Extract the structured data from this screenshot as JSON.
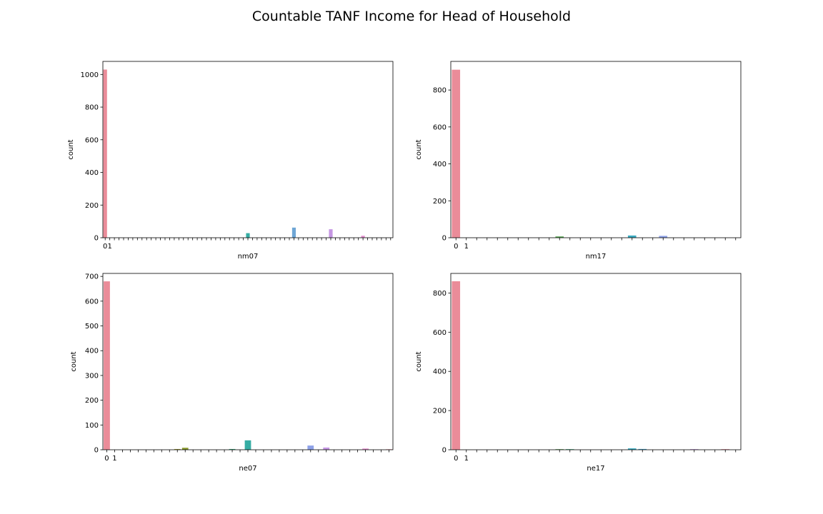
{
  "suptitle": "Countable TANF Income for Head of Household",
  "chart_data": [
    {
      "type": "bar",
      "xlabel": "nm07",
      "ylabel": "count",
      "category_count": 63,
      "tick_labels": [
        "0",
        "1"
      ],
      "ylim": [
        0,
        1080
      ],
      "yticks": [
        0,
        200,
        400,
        600,
        800,
        1000
      ],
      "bars": [
        {
          "index": 0,
          "value": 1030,
          "color": "#ea8c99"
        },
        {
          "index": 31,
          "value": 28,
          "color": "#36ada4"
        },
        {
          "index": 41,
          "value": 62,
          "color": "#6ea6d5"
        },
        {
          "index": 49,
          "value": 52,
          "color": "#c596e3"
        },
        {
          "index": 56,
          "value": 12,
          "color": "#e48fcf"
        }
      ]
    },
    {
      "type": "bar",
      "xlabel": "nm17",
      "ylabel": "count",
      "category_count": 28,
      "tick_labels": [
        "0",
        "1"
      ],
      "ylim": [
        0,
        955
      ],
      "yticks": [
        0,
        200,
        400,
        600,
        800
      ],
      "bars": [
        {
          "index": 0,
          "value": 910,
          "color": "#ea8c99"
        },
        {
          "index": 10,
          "value": 7,
          "color": "#5aa655"
        },
        {
          "index": 17,
          "value": 12,
          "color": "#38a9bf"
        },
        {
          "index": 20,
          "value": 10,
          "color": "#8ea2e8"
        }
      ]
    },
    {
      "type": "bar",
      "xlabel": "ne07",
      "ylabel": "count",
      "category_count": 37,
      "tick_labels": [
        "0",
        "1"
      ],
      "ylim": [
        0,
        712
      ],
      "yticks": [
        0,
        100,
        200,
        300,
        400,
        500,
        600,
        700
      ],
      "bars": [
        {
          "index": 0,
          "value": 680,
          "color": "#ea8c99"
        },
        {
          "index": 9,
          "value": 3,
          "color": "#a5a03a"
        },
        {
          "index": 10,
          "value": 8,
          "color": "#8a9a2f"
        },
        {
          "index": 16,
          "value": 3,
          "color": "#3aab7c"
        },
        {
          "index": 18,
          "value": 38,
          "color": "#36ada4"
        },
        {
          "index": 26,
          "value": 17,
          "color": "#8ea2e8"
        },
        {
          "index": 28,
          "value": 9,
          "color": "#c596e3"
        },
        {
          "index": 33,
          "value": 5,
          "color": "#e48fcf"
        },
        {
          "index": 36,
          "value": 2,
          "color": "#ea8c99"
        }
      ]
    },
    {
      "type": "bar",
      "xlabel": "ne17",
      "ylabel": "count",
      "category_count": 28,
      "tick_labels": [
        "0",
        "1"
      ],
      "ylim": [
        0,
        900
      ],
      "yticks": [
        0,
        200,
        400,
        600,
        800
      ],
      "bars": [
        {
          "index": 0,
          "value": 860,
          "color": "#ea8c99"
        },
        {
          "index": 10,
          "value": 3,
          "color": "#5aa655"
        },
        {
          "index": 11,
          "value": 3,
          "color": "#3aab7c"
        },
        {
          "index": 17,
          "value": 7,
          "color": "#38a9bf"
        },
        {
          "index": 18,
          "value": 4,
          "color": "#4aa6cf"
        },
        {
          "index": 23,
          "value": 3,
          "color": "#c596e3"
        },
        {
          "index": 26,
          "value": 3,
          "color": "#ea8c99"
        }
      ]
    }
  ]
}
